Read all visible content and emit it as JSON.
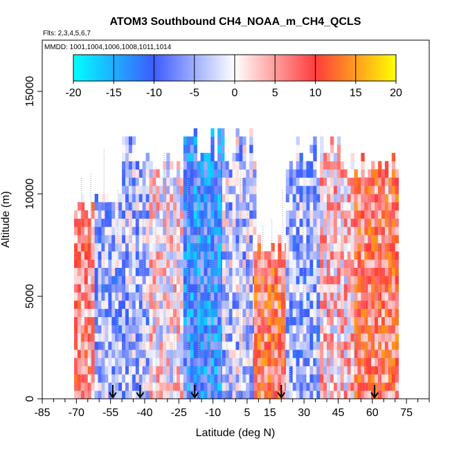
{
  "chart_data": {
    "type": "heatmap",
    "title": "ATOM3 Southbound CH4_NOAA_m_CH4_QCLS",
    "flights_label": "Flts: 2,3,4,5,6,7",
    "dates_label": "MMDD: 1001,1004,1006,1008,1011,1014",
    "xlabel": "Latitude (deg N)",
    "ylabel": "Altitude (m)",
    "xlim": [
      -85,
      85
    ],
    "ylim": [
      0,
      17500
    ],
    "x_ticks": [
      -85,
      -70,
      -55,
      -40,
      -25,
      -10,
      5,
      15,
      30,
      45,
      60,
      75
    ],
    "x_minor_ticks": [
      -80,
      -75,
      -65,
      -60,
      -50,
      -45,
      -35,
      -30,
      -20,
      -15,
      -5,
      0,
      10,
      20,
      25,
      35,
      40,
      50,
      55,
      65,
      70,
      80,
      85
    ],
    "y_ticks": [
      0,
      5000,
      10000,
      15000
    ],
    "colorbar": {
      "ticks": [
        -20,
        -15,
        -10,
        -5,
        0,
        5,
        10,
        15,
        20
      ],
      "range": [
        -20,
        20
      ],
      "colors": [
        "#00ffff",
        "#3d5cff",
        "#ffffff",
        "#ff3c3c",
        "#ffff00"
      ]
    },
    "arrows_latitude": [
      -54,
      -42,
      -18,
      20,
      61
    ],
    "data_extent": {
      "lat_range": [
        -72,
        71
      ],
      "alt_range": [
        0,
        13000
      ]
    },
    "regions": [
      {
        "lat": [
          -71,
          -62
        ],
        "alt": [
          0,
          10000
        ],
        "value": 6
      },
      {
        "lat": [
          -62,
          -50
        ],
        "alt": [
          0,
          11000
        ],
        "value": -5
      },
      {
        "lat": [
          -50,
          -38
        ],
        "alt": [
          0,
          12500
        ],
        "value": -4
      },
      {
        "lat": [
          -38,
          -23
        ],
        "alt": [
          0,
          12000
        ],
        "value": 1
      },
      {
        "lat": [
          -23,
          -6
        ],
        "alt": [
          0,
          13000
        ],
        "value": -11
      },
      {
        "lat": [
          -6,
          8
        ],
        "alt": [
          0,
          13000
        ],
        "value": -3
      },
      {
        "lat": [
          8,
          22
        ],
        "alt": [
          0,
          8000
        ],
        "value": 9
      },
      {
        "lat": [
          22,
          37
        ],
        "alt": [
          0,
          12500
        ],
        "value": -5
      },
      {
        "lat": [
          37,
          52
        ],
        "alt": [
          0,
          12500
        ],
        "value": 2
      },
      {
        "lat": [
          52,
          71
        ],
        "alt": [
          0,
          12000
        ],
        "value": 8
      }
    ]
  }
}
